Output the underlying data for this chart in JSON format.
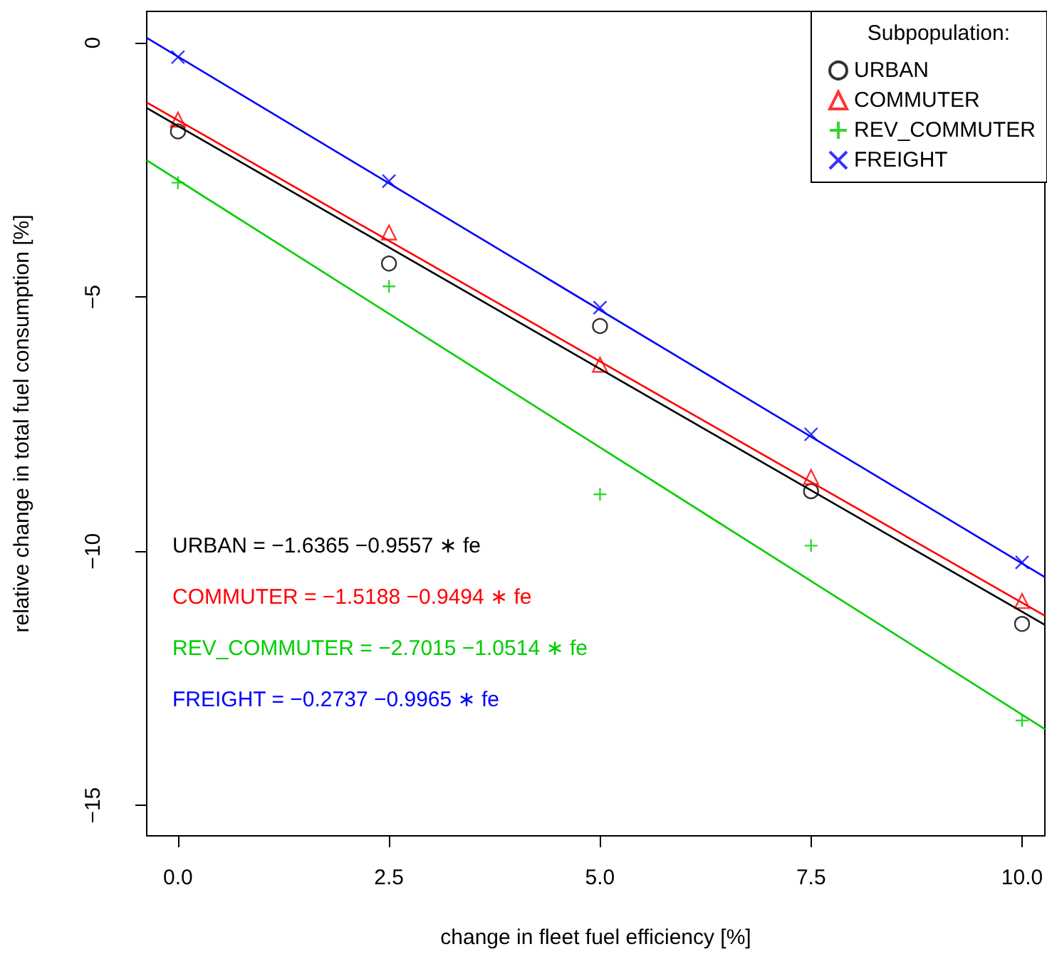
{
  "chart_data": {
    "type": "scatter",
    "xlabel": "change in fleet fuel efficiency [%]",
    "ylabel": "relative change in total fuel consumption [%]",
    "legend_title": "Subpopulation:",
    "legend": "top right",
    "grid": false,
    "xlim": [
      -0.37,
      10.27
    ],
    "ylim": [
      -15.6,
      0.62
    ],
    "xticks": [
      {
        "value": 0,
        "label": "0.0"
      },
      {
        "value": 2.5,
        "label": "2.5"
      },
      {
        "value": 5,
        "label": "5.0"
      },
      {
        "value": 7.5,
        "label": "7.5"
      },
      {
        "value": 10,
        "label": "10.0"
      }
    ],
    "yticks": [
      -15,
      -10,
      -5,
      0
    ],
    "series": [
      {
        "name": "URBAN",
        "color": "#000000",
        "marker": "circle",
        "x": [
          0,
          2.5,
          5,
          7.5,
          10
        ],
        "values": [
          -1.74,
          -4.34,
          -5.57,
          -8.82,
          -11.43
        ]
      },
      {
        "name": "COMMUTER",
        "color": "#ff0000",
        "marker": "triangle",
        "x": [
          0,
          2.5,
          5,
          7.5,
          10
        ],
        "values": [
          -1.51,
          -3.73,
          -6.33,
          -8.54,
          -10.98
        ]
      },
      {
        "name": "REV_COMMUTER",
        "color": "#00cd00",
        "marker": "plus",
        "x": [
          0,
          2.5,
          5,
          7.5,
          10
        ],
        "values": [
          -2.75,
          -4.79,
          -8.88,
          -9.89,
          -13.33
        ]
      },
      {
        "name": "FREIGHT",
        "color": "#0000ff",
        "marker": "cross",
        "x": [
          0,
          2.5,
          5,
          7.5,
          10
        ],
        "values": [
          -0.28,
          -2.72,
          -5.21,
          -7.7,
          -10.22
        ]
      },
      {
        "type": "line",
        "color": "#000000",
        "x": [
          -0.37,
          10.27
        ],
        "values": [
          -1.28,
          -11.45
        ]
      },
      {
        "type": "line",
        "color": "#ff0000",
        "x": [
          -0.37,
          10.27
        ],
        "values": [
          -1.17,
          -11.27
        ]
      },
      {
        "type": "line",
        "color": "#00cd00",
        "x": [
          -0.37,
          10.27
        ],
        "values": [
          -2.31,
          -13.5
        ]
      },
      {
        "type": "line",
        "color": "#0000ff",
        "x": [
          -0.37,
          10.27
        ],
        "values": [
          0.1,
          -10.51
        ]
      }
    ],
    "annotations": [
      "URBAN = −1.6365 −0.9557 ∗ fe",
      "COMMUTER = −1.5188 −0.9494 ∗ fe",
      "REV_COMMUTER = −2.7015 −1.0514 ∗ fe",
      "FREIGHT = −0.2737 −0.9965 ∗ fe"
    ]
  }
}
